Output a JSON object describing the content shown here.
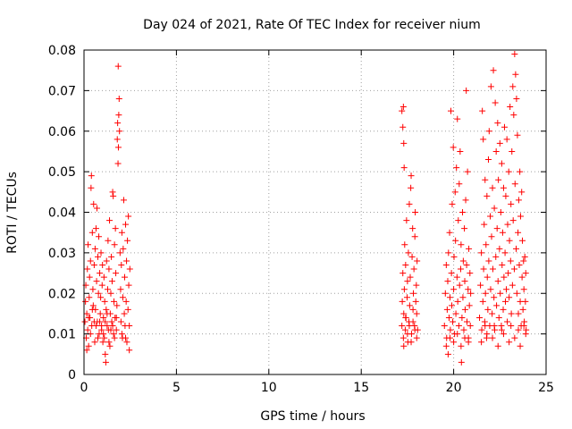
{
  "chart_data": {
    "type": "scatter",
    "title": "Day 024 of 2021, Rate Of TEC Index for receiver nium",
    "xlabel": "GPS time / hours",
    "ylabel": "ROTI / TECUs",
    "xlim": [
      0,
      25
    ],
    "ylim": [
      0,
      0.08
    ],
    "xticks": [
      "0",
      "5",
      "10",
      "15",
      "20",
      "25"
    ],
    "xtick_values": [
      0,
      5,
      10,
      15,
      20,
      25
    ],
    "yticks": [
      "0",
      "0.01",
      "0.02",
      "0.03",
      "0.04",
      "0.05",
      "0.06",
      "0.07",
      "0.08"
    ],
    "ytick_values": [
      0,
      0.01,
      0.02,
      0.03,
      0.04,
      0.05,
      0.06,
      0.07,
      0.08
    ],
    "grid": true,
    "marker": "plus",
    "color": "#ff0000",
    "points": [
      [
        0.05,
        0.013
      ],
      [
        0.08,
        0.018
      ],
      [
        0.1,
        0.022
      ],
      [
        0.12,
        0.009
      ],
      [
        0.15,
        0.015
      ],
      [
        0.18,
        0.026
      ],
      [
        0.2,
        0.011
      ],
      [
        0.22,
        0.032
      ],
      [
        0.25,
        0.007
      ],
      [
        0.28,
        0.019
      ],
      [
        0.3,
        0.024
      ],
      [
        0.32,
        0.014
      ],
      [
        0.35,
        0.028
      ],
      [
        0.38,
        0.046
      ],
      [
        0.4,
        0.049
      ],
      [
        0.42,
        0.012
      ],
      [
        0.45,
        0.035
      ],
      [
        0.48,
        0.021
      ],
      [
        0.5,
        0.017
      ],
      [
        0.52,
        0.042
      ],
      [
        0.55,
        0.027
      ],
      [
        0.58,
        0.008
      ],
      [
        0.6,
        0.031
      ],
      [
        0.62,
        0.016
      ],
      [
        0.65,
        0.036
      ],
      [
        0.68,
        0.023
      ],
      [
        0.7,
        0.041
      ],
      [
        0.72,
        0.013
      ],
      [
        0.75,
        0.029
      ],
      [
        0.78,
        0.02
      ],
      [
        0.8,
        0.034
      ],
      [
        0.82,
        0.01
      ],
      [
        0.85,
        0.025
      ],
      [
        0.88,
        0.015
      ],
      [
        0.9,
        0.019
      ],
      [
        0.92,
        0.03
      ],
      [
        0.95,
        0.012
      ],
      [
        0.98,
        0.022
      ],
      [
        1.0,
        0.027
      ],
      [
        1.02,
        0.008
      ],
      [
        1.05,
        0.014
      ],
      [
        1.08,
        0.024
      ],
      [
        1.1,
        0.009
      ],
      [
        1.12,
        0.018
      ],
      [
        1.15,
        0.005
      ],
      [
        1.18,
        0.003
      ],
      [
        1.2,
        0.016
      ],
      [
        1.22,
        0.028
      ],
      [
        1.25,
        0.012
      ],
      [
        1.28,
        0.021
      ],
      [
        1.3,
        0.033
      ],
      [
        1.32,
        0.011
      ],
      [
        1.35,
        0.026
      ],
      [
        1.38,
        0.038
      ],
      [
        1.4,
        0.007
      ],
      [
        1.42,
        0.015
      ],
      [
        1.45,
        0.02
      ],
      [
        1.48,
        0.029
      ],
      [
        1.5,
        0.013
      ],
      [
        1.52,
        0.023
      ],
      [
        1.55,
        0.045
      ],
      [
        1.58,
        0.044
      ],
      [
        1.6,
        0.01
      ],
      [
        1.62,
        0.018
      ],
      [
        1.65,
        0.032
      ],
      [
        1.68,
        0.014
      ],
      [
        1.7,
        0.036
      ],
      [
        1.72,
        0.025
      ],
      [
        1.75,
        0.011
      ],
      [
        1.78,
        0.017
      ],
      [
        1.8,
        0.058
      ],
      [
        1.82,
        0.062
      ],
      [
        1.84,
        0.052
      ],
      [
        1.85,
        0.076
      ],
      [
        1.86,
        0.056
      ],
      [
        1.88,
        0.064
      ],
      [
        1.9,
        0.068
      ],
      [
        1.92,
        0.06
      ],
      [
        1.95,
        0.03
      ],
      [
        1.98,
        0.021
      ],
      [
        2.0,
        0.013
      ],
      [
        2.02,
        0.027
      ],
      [
        2.05,
        0.035
      ],
      [
        2.08,
        0.009
      ],
      [
        2.1,
        0.019
      ],
      [
        2.12,
        0.031
      ],
      [
        2.15,
        0.043
      ],
      [
        2.18,
        0.015
      ],
      [
        2.2,
        0.024
      ],
      [
        2.22,
        0.012
      ],
      [
        2.25,
        0.037
      ],
      [
        2.28,
        0.018
      ],
      [
        2.3,
        0.028
      ],
      [
        2.32,
        0.008
      ],
      [
        2.35,
        0.033
      ],
      [
        2.38,
        0.016
      ],
      [
        2.4,
        0.039
      ],
      [
        2.42,
        0.022
      ],
      [
        2.45,
        0.006
      ],
      [
        2.48,
        0.026
      ],
      [
        0.15,
        0.006
      ],
      [
        0.35,
        0.01
      ],
      [
        0.55,
        0.013
      ],
      [
        0.75,
        0.009
      ],
      [
        0.95,
        0.011
      ],
      [
        1.15,
        0.013
      ],
      [
        1.35,
        0.008
      ],
      [
        1.55,
        0.012
      ],
      [
        1.75,
        0.014
      ],
      [
        2.05,
        0.01
      ],
      [
        2.25,
        0.009
      ],
      [
        2.45,
        0.012
      ],
      [
        0.25,
        0.014
      ],
      [
        0.45,
        0.016
      ],
      [
        0.65,
        0.012
      ],
      [
        0.85,
        0.013
      ],
      [
        1.05,
        0.01
      ],
      [
        1.25,
        0.015
      ],
      [
        1.45,
        0.011
      ],
      [
        1.65,
        0.009
      ],
      [
        17.2,
        0.065
      ],
      [
        17.25,
        0.061
      ],
      [
        17.28,
        0.066
      ],
      [
        17.3,
        0.057
      ],
      [
        17.32,
        0.051
      ],
      [
        17.2,
        0.012
      ],
      [
        17.22,
        0.018
      ],
      [
        17.25,
        0.025
      ],
      [
        17.28,
        0.009
      ],
      [
        17.3,
        0.015
      ],
      [
        17.33,
        0.021
      ],
      [
        17.35,
        0.032
      ],
      [
        17.38,
        0.011
      ],
      [
        17.4,
        0.027
      ],
      [
        17.42,
        0.014
      ],
      [
        17.45,
        0.038
      ],
      [
        17.48,
        0.019
      ],
      [
        17.5,
        0.023
      ],
      [
        17.52,
        0.008
      ],
      [
        17.55,
        0.03
      ],
      [
        17.58,
        0.013
      ],
      [
        17.6,
        0.042
      ],
      [
        17.62,
        0.017
      ],
      [
        17.65,
        0.024
      ],
      [
        17.68,
        0.046
      ],
      [
        17.7,
        0.049
      ],
      [
        17.72,
        0.01
      ],
      [
        17.75,
        0.029
      ],
      [
        17.78,
        0.036
      ],
      [
        17.8,
        0.016
      ],
      [
        17.82,
        0.02
      ],
      [
        17.85,
        0.026
      ],
      [
        17.88,
        0.012
      ],
      [
        17.9,
        0.034
      ],
      [
        17.92,
        0.04
      ],
      [
        17.95,
        0.018
      ],
      [
        17.98,
        0.022
      ],
      [
        18.0,
        0.015
      ],
      [
        18.02,
        0.028
      ],
      [
        18.05,
        0.011
      ],
      [
        17.3,
        0.007
      ],
      [
        17.5,
        0.01
      ],
      [
        17.7,
        0.008
      ],
      [
        17.9,
        0.011
      ],
      [
        18.0,
        0.009
      ],
      [
        17.4,
        0.014
      ],
      [
        17.6,
        0.012
      ],
      [
        17.8,
        0.013
      ],
      [
        19.5,
        0.012
      ],
      [
        19.55,
        0.02
      ],
      [
        19.6,
        0.027
      ],
      [
        19.62,
        0.009
      ],
      [
        19.65,
        0.016
      ],
      [
        19.68,
        0.023
      ],
      [
        19.7,
        0.005
      ],
      [
        19.72,
        0.03
      ],
      [
        19.75,
        0.014
      ],
      [
        19.78,
        0.035
      ],
      [
        19.8,
        0.019
      ],
      [
        19.82,
        0.011
      ],
      [
        19.85,
        0.065
      ],
      [
        19.88,
        0.025
      ],
      [
        19.9,
        0.017
      ],
      [
        19.92,
        0.042
      ],
      [
        19.95,
        0.013
      ],
      [
        19.98,
        0.056
      ],
      [
        20.0,
        0.021
      ],
      [
        20.02,
        0.029
      ],
      [
        20.05,
        0.01
      ],
      [
        20.08,
        0.045
      ],
      [
        20.1,
        0.033
      ],
      [
        20.12,
        0.015
      ],
      [
        20.15,
        0.051
      ],
      [
        20.18,
        0.024
      ],
      [
        20.2,
        0.063
      ],
      [
        20.22,
        0.018
      ],
      [
        20.25,
        0.038
      ],
      [
        20.28,
        0.012
      ],
      [
        20.3,
        0.047
      ],
      [
        20.32,
        0.022
      ],
      [
        20.35,
        0.055
      ],
      [
        20.38,
        0.026
      ],
      [
        20.4,
        0.032
      ],
      [
        20.42,
        0.003
      ],
      [
        20.45,
        0.014
      ],
      [
        20.48,
        0.04
      ],
      [
        20.5,
        0.019
      ],
      [
        20.52,
        0.028
      ],
      [
        20.55,
        0.011
      ],
      [
        20.58,
        0.036
      ],
      [
        20.6,
        0.023
      ],
      [
        20.62,
        0.016
      ],
      [
        20.65,
        0.043
      ],
      [
        20.68,
        0.07
      ],
      [
        20.7,
        0.027
      ],
      [
        20.72,
        0.013
      ],
      [
        20.75,
        0.05
      ],
      [
        20.78,
        0.021
      ],
      [
        20.8,
        0.009
      ],
      [
        20.82,
        0.031
      ],
      [
        20.85,
        0.017
      ],
      [
        20.88,
        0.025
      ],
      [
        20.9,
        0.012
      ],
      [
        20.92,
        0.02
      ],
      [
        19.6,
        0.007
      ],
      [
        19.8,
        0.009
      ],
      [
        20.0,
        0.008
      ],
      [
        20.2,
        0.01
      ],
      [
        20.4,
        0.007
      ],
      [
        20.6,
        0.009
      ],
      [
        20.8,
        0.008
      ],
      [
        21.4,
        0.014
      ],
      [
        21.45,
        0.022
      ],
      [
        21.5,
        0.03
      ],
      [
        21.52,
        0.011
      ],
      [
        21.55,
        0.065
      ],
      [
        21.58,
        0.018
      ],
      [
        21.6,
        0.058
      ],
      [
        21.62,
        0.026
      ],
      [
        21.65,
        0.037
      ],
      [
        21.68,
        0.013
      ],
      [
        21.7,
        0.048
      ],
      [
        21.72,
        0.02
      ],
      [
        21.75,
        0.032
      ],
      [
        21.78,
        0.009
      ],
      [
        21.8,
        0.044
      ],
      [
        21.82,
        0.024
      ],
      [
        21.85,
        0.016
      ],
      [
        21.88,
        0.053
      ],
      [
        21.9,
        0.028
      ],
      [
        21.92,
        0.06
      ],
      [
        21.95,
        0.012
      ],
      [
        21.98,
        0.039
      ],
      [
        22.0,
        0.021
      ],
      [
        22.02,
        0.071
      ],
      [
        22.05,
        0.034
      ],
      [
        22.08,
        0.015
      ],
      [
        22.1,
        0.046
      ],
      [
        22.12,
        0.026
      ],
      [
        22.15,
        0.075
      ],
      [
        22.18,
        0.019
      ],
      [
        22.2,
        0.041
      ],
      [
        22.22,
        0.011
      ],
      [
        22.25,
        0.067
      ],
      [
        22.28,
        0.029
      ],
      [
        22.3,
        0.055
      ],
      [
        22.32,
        0.017
      ],
      [
        22.35,
        0.036
      ],
      [
        22.38,
        0.062
      ],
      [
        22.4,
        0.023
      ],
      [
        22.42,
        0.048
      ],
      [
        22.45,
        0.014
      ],
      [
        22.48,
        0.031
      ],
      [
        22.5,
        0.057
      ],
      [
        22.52,
        0.02
      ],
      [
        22.55,
        0.04
      ],
      [
        22.58,
        0.012
      ],
      [
        22.6,
        0.052
      ],
      [
        22.62,
        0.027
      ],
      [
        22.65,
        0.035
      ],
      [
        22.68,
        0.016
      ],
      [
        22.7,
        0.046
      ],
      [
        22.72,
        0.024
      ],
      [
        22.75,
        0.061
      ],
      [
        22.78,
        0.03
      ],
      [
        22.8,
        0.018
      ],
      [
        22.82,
        0.044
      ],
      [
        22.85,
        0.021
      ],
      [
        22.88,
        0.058
      ],
      [
        22.9,
        0.013
      ],
      [
        22.92,
        0.037
      ],
      [
        22.95,
        0.025
      ],
      [
        22.98,
        0.05
      ],
      [
        23.0,
        0.019
      ],
      [
        23.02,
        0.033
      ],
      [
        23.05,
        0.066
      ],
      [
        23.08,
        0.028
      ],
      [
        23.1,
        0.042
      ],
      [
        23.12,
        0.015
      ],
      [
        23.15,
        0.055
      ],
      [
        23.18,
        0.022
      ],
      [
        23.2,
        0.071
      ],
      [
        23.22,
        0.038
      ],
      [
        23.25,
        0.064
      ],
      [
        23.28,
        0.026
      ],
      [
        23.3,
        0.079
      ],
      [
        23.32,
        0.047
      ],
      [
        23.35,
        0.074
      ],
      [
        23.38,
        0.031
      ],
      [
        23.4,
        0.068
      ],
      [
        23.42,
        0.02
      ],
      [
        23.45,
        0.059
      ],
      [
        23.48,
        0.035
      ],
      [
        23.5,
        0.015
      ],
      [
        23.52,
        0.043
      ],
      [
        23.55,
        0.027
      ],
      [
        23.58,
        0.05
      ],
      [
        23.6,
        0.018
      ],
      [
        23.62,
        0.039
      ],
      [
        23.65,
        0.012
      ],
      [
        23.68,
        0.045
      ],
      [
        23.7,
        0.024
      ],
      [
        23.72,
        0.033
      ],
      [
        23.75,
        0.016
      ],
      [
        23.78,
        0.028
      ],
      [
        23.8,
        0.021
      ],
      [
        23.82,
        0.013
      ],
      [
        23.85,
        0.029
      ],
      [
        23.88,
        0.018
      ],
      [
        23.9,
        0.025
      ],
      [
        23.92,
        0.011
      ],
      [
        21.5,
        0.008
      ],
      [
        21.8,
        0.01
      ],
      [
        22.1,
        0.009
      ],
      [
        22.4,
        0.007
      ],
      [
        22.7,
        0.01
      ],
      [
        23.0,
        0.008
      ],
      [
        23.3,
        0.009
      ],
      [
        23.6,
        0.007
      ],
      [
        23.9,
        0.01
      ],
      [
        22.2,
        0.012
      ],
      [
        22.6,
        0.011
      ],
      [
        23.1,
        0.012
      ],
      [
        23.5,
        0.011
      ],
      [
        21.7,
        0.012
      ],
      [
        23.8,
        0.012
      ]
    ]
  }
}
